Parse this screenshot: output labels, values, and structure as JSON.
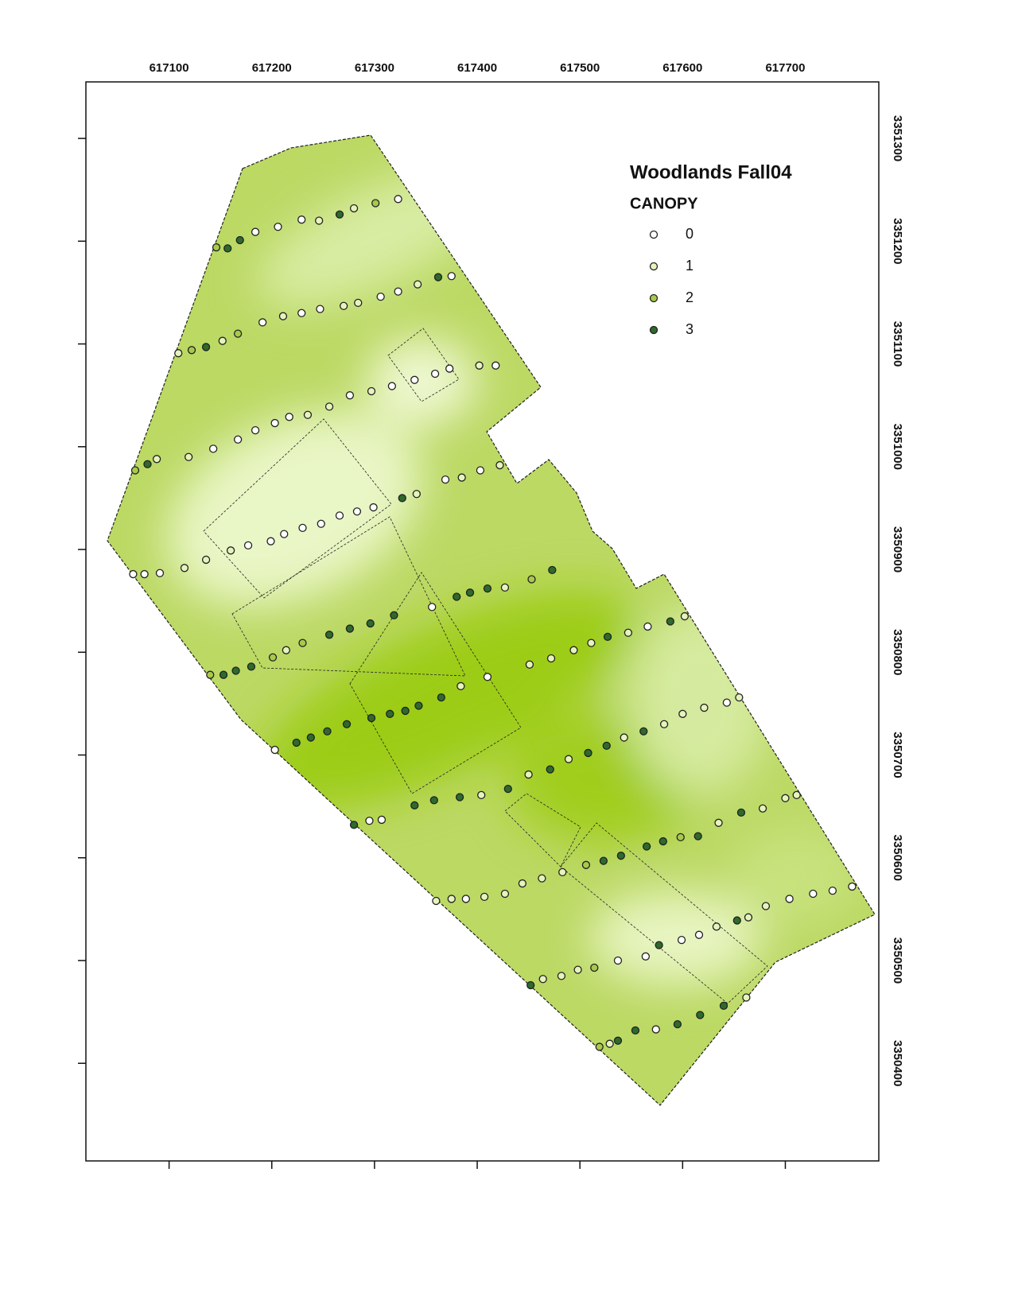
{
  "map": {
    "title": "Woodlands Fall04",
    "legend_title": "CANOPY",
    "legend": {
      "classes": [
        0,
        1,
        2,
        3
      ],
      "colors": [
        "#ffffff",
        "#e6f3bd",
        "#a8c94c",
        "#2e6a2c"
      ]
    },
    "xlim": [
      617019,
      617791
    ],
    "ylim": [
      3350305,
      3351355
    ],
    "xticks": [
      617100,
      617200,
      617300,
      617400,
      617500,
      617600,
      617700
    ],
    "yticks": [
      3350400,
      3350500,
      3350600,
      3350700,
      3350800,
      3350900,
      3351000,
      3351100,
      3351200,
      3351300
    ],
    "points": [
      [
        617146,
        3351194,
        2
      ],
      [
        617157,
        3351193,
        3
      ],
      [
        617169,
        3351201,
        3
      ],
      [
        617184,
        3351209,
        0
      ],
      [
        617206,
        3351214,
        0
      ],
      [
        617229,
        3351221,
        0
      ],
      [
        617246,
        3351220,
        1
      ],
      [
        617266,
        3351226,
        3
      ],
      [
        617280,
        3351232,
        1
      ],
      [
        617301,
        3351237,
        2
      ],
      [
        617323,
        3351241,
        0
      ],
      [
        617109,
        3351091,
        1
      ],
      [
        617122,
        3351094,
        2
      ],
      [
        617136,
        3351097,
        3
      ],
      [
        617152,
        3351103,
        1
      ],
      [
        617167,
        3351110,
        2
      ],
      [
        617191,
        3351121,
        0
      ],
      [
        617211,
        3351127,
        1
      ],
      [
        617229,
        3351130,
        0
      ],
      [
        617247,
        3351134,
        0
      ],
      [
        617270,
        3351137,
        1
      ],
      [
        617284,
        3351140,
        1
      ],
      [
        617306,
        3351146,
        0
      ],
      [
        617323,
        3351151,
        0
      ],
      [
        617342,
        3351158,
        1
      ],
      [
        617362,
        3351165,
        3
      ],
      [
        617375,
        3351166,
        0
      ],
      [
        617067,
        3350977,
        2
      ],
      [
        617079,
        3350983,
        3
      ],
      [
        617088,
        3350988,
        1
      ],
      [
        617119,
        3350990,
        1
      ],
      [
        617143,
        3350998,
        0
      ],
      [
        617167,
        3351007,
        0
      ],
      [
        617184,
        3351016,
        0
      ],
      [
        617203,
        3351023,
        0
      ],
      [
        617217,
        3351029,
        0
      ],
      [
        617235,
        3351031,
        1
      ],
      [
        617256,
        3351039,
        1
      ],
      [
        617276,
        3351050,
        0
      ],
      [
        617297,
        3351054,
        1
      ],
      [
        617317,
        3351059,
        0
      ],
      [
        617339,
        3351065,
        0
      ],
      [
        617359,
        3351071,
        0
      ],
      [
        617373,
        3351076,
        0
      ],
      [
        617402,
        3351079,
        1
      ],
      [
        617418,
        3351079,
        0
      ],
      [
        617065,
        3350876,
        0
      ],
      [
        617076,
        3350876,
        0
      ],
      [
        617091,
        3350877,
        0
      ],
      [
        617115,
        3350882,
        1
      ],
      [
        617136,
        3350890,
        1
      ],
      [
        617160,
        3350899,
        1
      ],
      [
        617177,
        3350904,
        0
      ],
      [
        617199,
        3350908,
        0
      ],
      [
        617212,
        3350915,
        0
      ],
      [
        617230,
        3350921,
        0
      ],
      [
        617248,
        3350925,
        0
      ],
      [
        617266,
        3350933,
        0
      ],
      [
        617283,
        3350937,
        0
      ],
      [
        617299,
        3350941,
        0
      ],
      [
        617327,
        3350950,
        3
      ],
      [
        617341,
        3350954,
        1
      ],
      [
        617369,
        3350968,
        0
      ],
      [
        617385,
        3350970,
        1
      ],
      [
        617403,
        3350977,
        0
      ],
      [
        617422,
        3350982,
        1
      ],
      [
        617140,
        3350778,
        2
      ],
      [
        617153,
        3350778,
        3
      ],
      [
        617165,
        3350782,
        3
      ],
      [
        617180,
        3350786,
        3
      ],
      [
        617201,
        3350795,
        2
      ],
      [
        617214,
        3350802,
        1
      ],
      [
        617230,
        3350809,
        2
      ],
      [
        617256,
        3350817,
        3
      ],
      [
        617276,
        3350823,
        3
      ],
      [
        617296,
        3350828,
        3
      ],
      [
        617319,
        3350836,
        3
      ],
      [
        617356,
        3350844,
        0
      ],
      [
        617380,
        3350854,
        3
      ],
      [
        617393,
        3350858,
        3
      ],
      [
        617410,
        3350862,
        3
      ],
      [
        617427,
        3350863,
        1
      ],
      [
        617453,
        3350871,
        2
      ],
      [
        617473,
        3350880,
        3
      ],
      [
        617224,
        3350712,
        3
      ],
      [
        617238,
        3350717,
        3
      ],
      [
        617254,
        3350723,
        3
      ],
      [
        617273,
        3350730,
        3
      ],
      [
        617297,
        3350736,
        3
      ],
      [
        617315,
        3350740,
        3
      ],
      [
        617330,
        3350743,
        3
      ],
      [
        617343,
        3350748,
        3
      ],
      [
        617365,
        3350756,
        3
      ],
      [
        617384,
        3350767,
        1
      ],
      [
        617410,
        3350776,
        0
      ],
      [
        617451,
        3350788,
        1
      ],
      [
        617472,
        3350794,
        1
      ],
      [
        617494,
        3350802,
        1
      ],
      [
        617511,
        3350809,
        1
      ],
      [
        617527,
        3350815,
        3
      ],
      [
        617547,
        3350819,
        1
      ],
      [
        617566,
        3350825,
        0
      ],
      [
        617588,
        3350830,
        3
      ],
      [
        617602,
        3350835,
        1
      ],
      [
        617203,
        3350705,
        0
      ],
      [
        617280,
        3350632,
        3
      ],
      [
        617295,
        3350636,
        0
      ],
      [
        617307,
        3350637,
        0
      ],
      [
        617339,
        3350651,
        3
      ],
      [
        617358,
        3350656,
        3
      ],
      [
        617383,
        3350659,
        3
      ],
      [
        617404,
        3350661,
        1
      ],
      [
        617430,
        3350667,
        3
      ],
      [
        617450,
        3350681,
        1
      ],
      [
        617471,
        3350686,
        3
      ],
      [
        617489,
        3350696,
        1
      ],
      [
        617508,
        3350702,
        3
      ],
      [
        617526,
        3350709,
        3
      ],
      [
        617543,
        3350717,
        1
      ],
      [
        617562,
        3350723,
        3
      ],
      [
        617582,
        3350730,
        1
      ],
      [
        617600,
        3350740,
        1
      ],
      [
        617621,
        3350746,
        1
      ],
      [
        617643,
        3350751,
        0
      ],
      [
        617655,
        3350756,
        1
      ],
      [
        617360,
        3350558,
        1
      ],
      [
        617375,
        3350560,
        1
      ],
      [
        617389,
        3350560,
        0
      ],
      [
        617407,
        3350562,
        1
      ],
      [
        617427,
        3350565,
        1
      ],
      [
        617444,
        3350575,
        1
      ],
      [
        617463,
        3350580,
        1
      ],
      [
        617483,
        3350586,
        1
      ],
      [
        617506,
        3350593,
        2
      ],
      [
        617523,
        3350597,
        3
      ],
      [
        617540,
        3350602,
        3
      ],
      [
        617565,
        3350611,
        3
      ],
      [
        617581,
        3350616,
        3
      ],
      [
        617598,
        3350620,
        2
      ],
      [
        617615,
        3350621,
        3
      ],
      [
        617635,
        3350634,
        1
      ],
      [
        617657,
        3350644,
        3
      ],
      [
        617678,
        3350648,
        1
      ],
      [
        617700,
        3350658,
        1
      ],
      [
        617711,
        3350661,
        1
      ],
      [
        617452,
        3350476,
        3
      ],
      [
        617464,
        3350482,
        1
      ],
      [
        617482,
        3350485,
        1
      ],
      [
        617498,
        3350491,
        1
      ],
      [
        617514,
        3350493,
        2
      ],
      [
        617537,
        3350500,
        0
      ],
      [
        617564,
        3350504,
        0
      ],
      [
        617577,
        3350515,
        3
      ],
      [
        617599,
        3350520,
        0
      ],
      [
        617616,
        3350525,
        0
      ],
      [
        617633,
        3350533,
        1
      ],
      [
        617653,
        3350539,
        3
      ],
      [
        617664,
        3350542,
        1
      ],
      [
        617681,
        3350553,
        1
      ],
      [
        617704,
        3350560,
        0
      ],
      [
        617727,
        3350565,
        0
      ],
      [
        617746,
        3350568,
        0
      ],
      [
        617765,
        3350572,
        0
      ],
      [
        617519,
        3350416,
        2
      ],
      [
        617529,
        3350419,
        1
      ],
      [
        617537,
        3350422,
        3
      ],
      [
        617554,
        3350432,
        3
      ],
      [
        617574,
        3350433,
        0
      ],
      [
        617595,
        3350438,
        3
      ],
      [
        617617,
        3350447,
        3
      ],
      [
        617640,
        3350456,
        3
      ],
      [
        617662,
        3350464,
        1
      ]
    ]
  }
}
